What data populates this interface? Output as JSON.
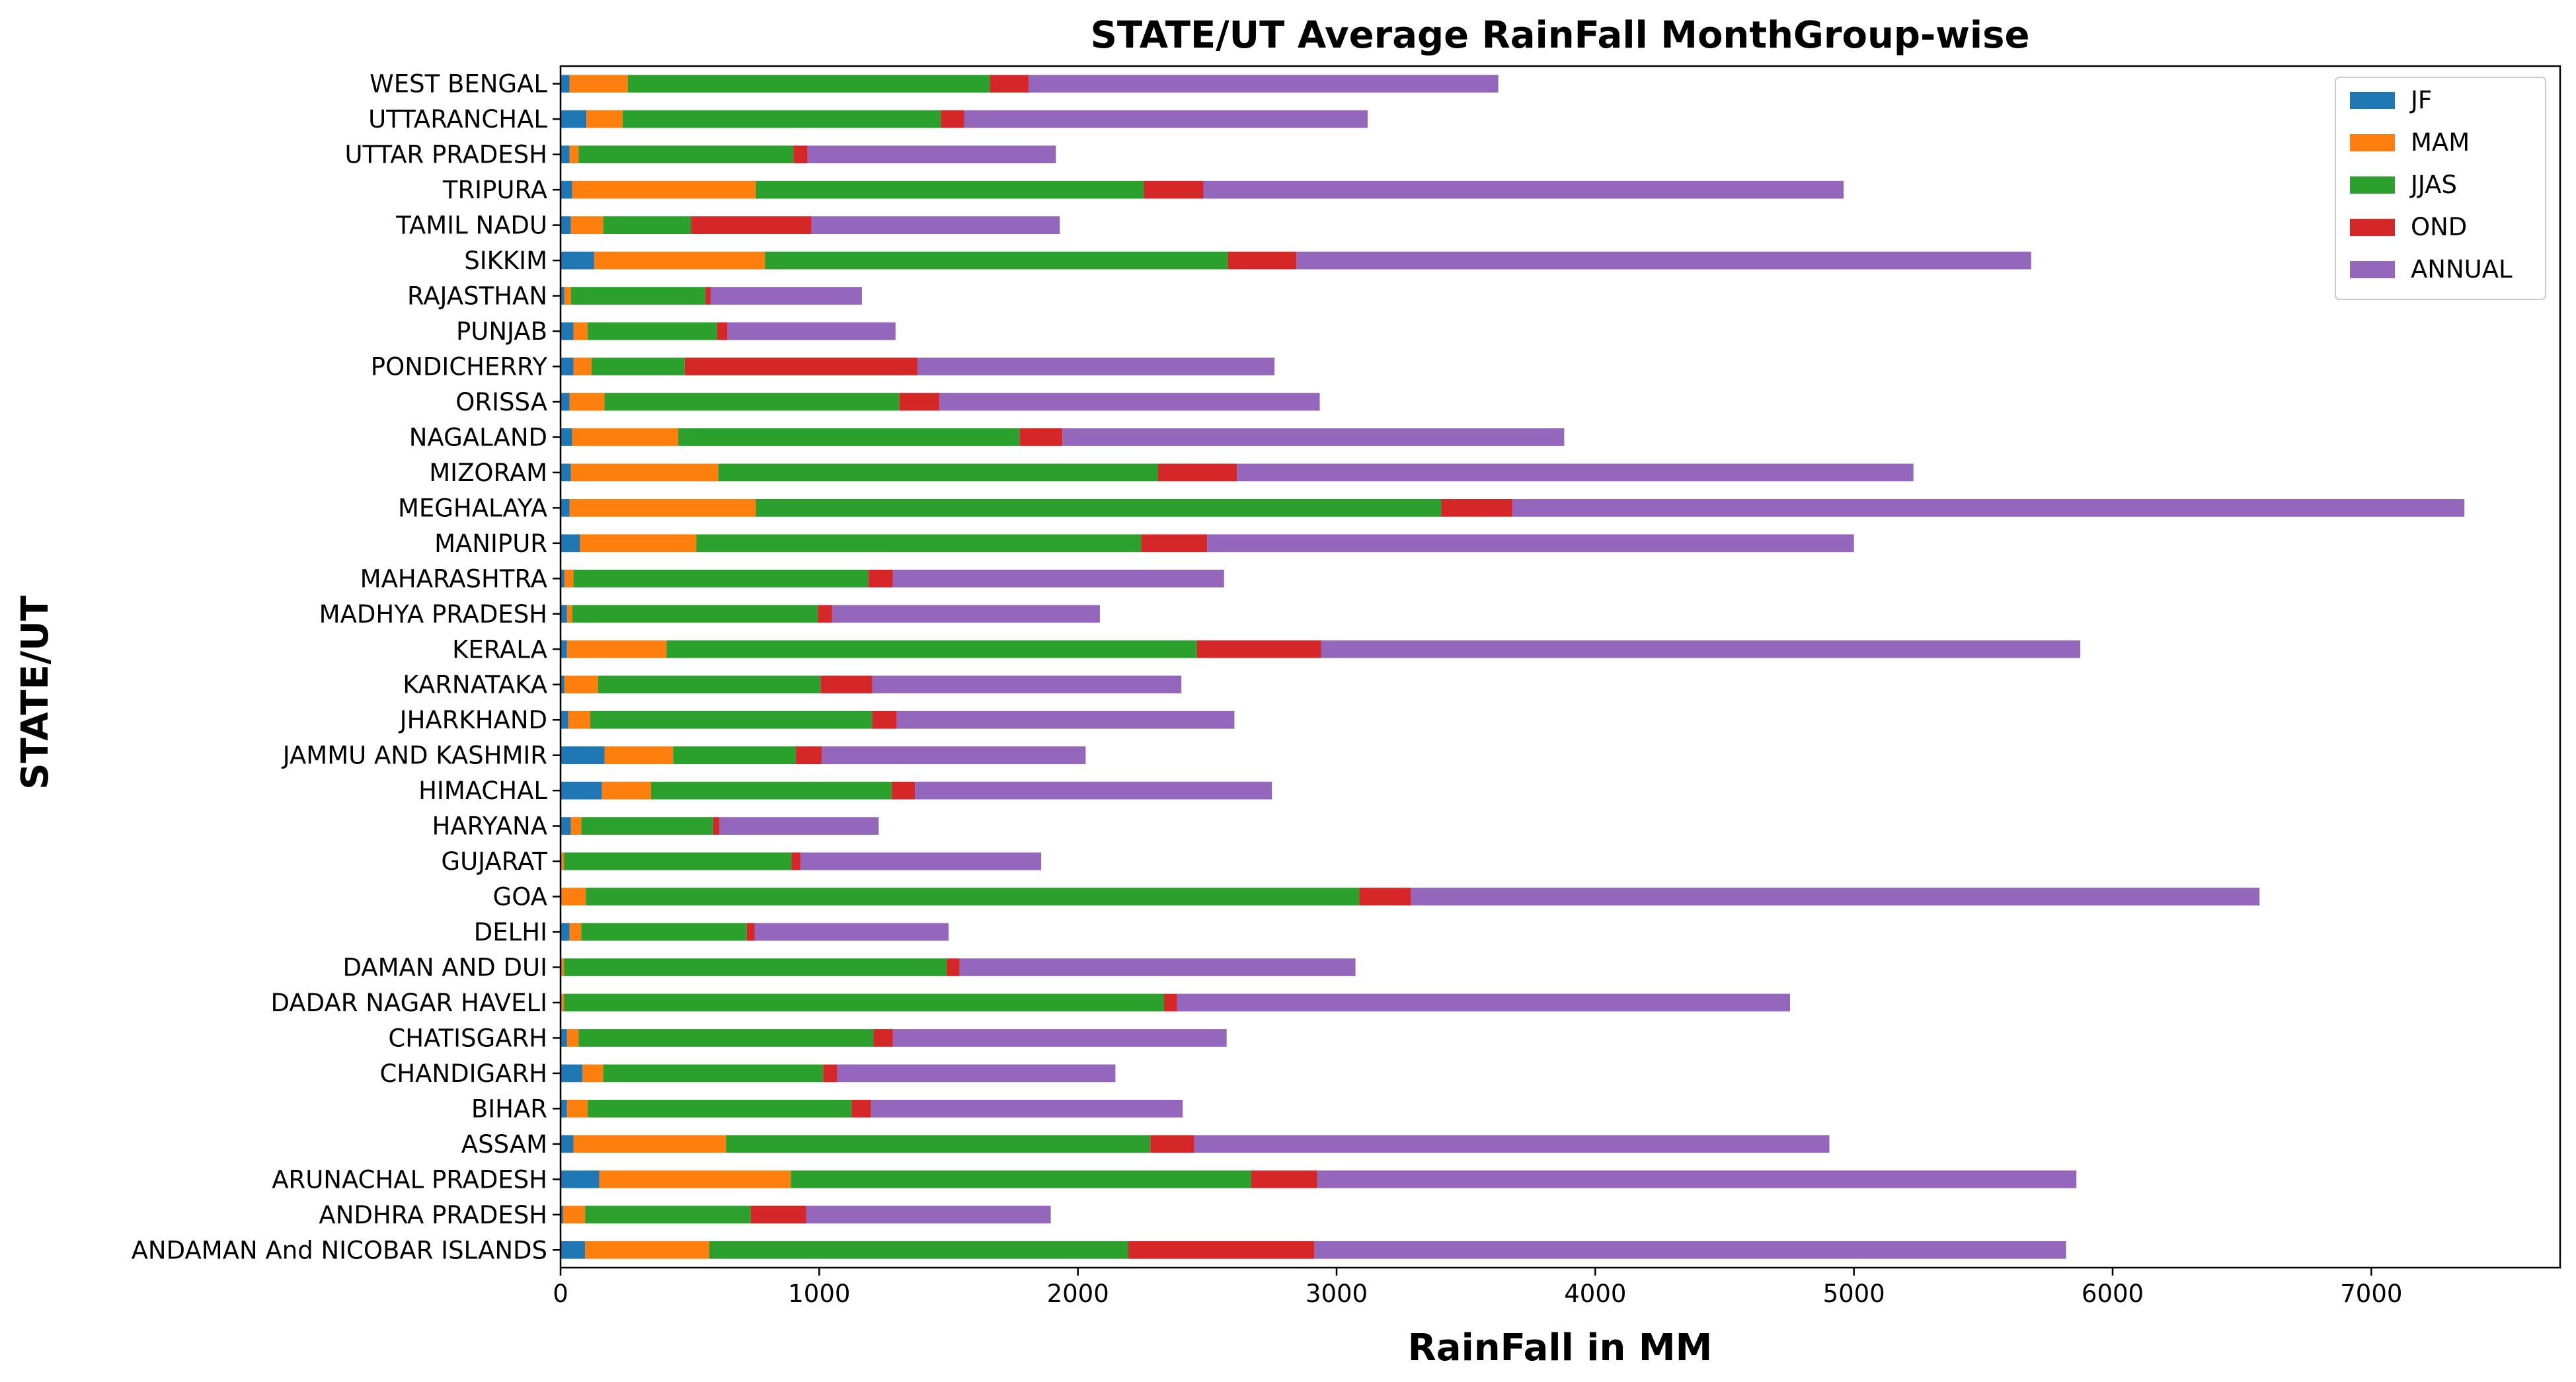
{
  "chart_data": {
    "type": "bar",
    "orientation": "horizontal",
    "stacked": true,
    "title": "STATE/UT Average RainFall MonthGroup-wise",
    "xlabel": "RainFall in MM",
    "ylabel": "STATE/UT",
    "xlim": [
      0,
      7730
    ],
    "xticks": [
      0,
      1000,
      2000,
      3000,
      4000,
      5000,
      6000,
      7000
    ],
    "grid": false,
    "legend_position": "top-right",
    "categories": [
      "ANDAMAN And NICOBAR ISLANDS",
      "ANDHRA PRADESH",
      "ARUNACHAL PRADESH",
      "ASSAM",
      "BIHAR",
      "CHANDIGARH",
      "CHATISGARH",
      "DADAR NAGAR HAVELI",
      "DAMAN AND DUI",
      "DELHI",
      "GOA",
      "GUJARAT",
      "HARYANA",
      "HIMACHAL",
      "JAMMU AND KASHMIR",
      "JHARKHAND",
      "KARNATAKA",
      "KERALA",
      "MADHYA PRADESH",
      "MAHARASHTRA",
      "MANIPUR",
      "MEGHALAYA",
      "MIZORAM",
      "NAGALAND",
      "ORISSA",
      "PONDICHERRY",
      "PUNJAB",
      "RAJASTHAN",
      "SIKKIM",
      "TAMIL NADU",
      "TRIPURA",
      "UTTAR PRADESH",
      "UTTARANCHAL",
      "WEST BENGAL"
    ],
    "series": [
      {
        "name": "JF",
        "color": "#1f77b4",
        "values": [
          95,
          10,
          150,
          50,
          25,
          85,
          25,
          3,
          3,
          35,
          3,
          3,
          40,
          160,
          170,
          30,
          15,
          25,
          25,
          15,
          75,
          35,
          40,
          45,
          35,
          50,
          50,
          15,
          130,
          40,
          45,
          35,
          100,
          35
        ]
      },
      {
        "name": "MAM",
        "color": "#ff7f0e",
        "values": [
          480,
          85,
          740,
          590,
          80,
          80,
          45,
          10,
          10,
          45,
          95,
          10,
          40,
          190,
          265,
          85,
          130,
          385,
          20,
          35,
          450,
          720,
          570,
          410,
          135,
          70,
          55,
          25,
          660,
          125,
          710,
          35,
          140,
          225
        ]
      },
      {
        "name": "JJAS",
        "color": "#2ca02c",
        "values": [
          1620,
          640,
          1780,
          1640,
          1020,
          850,
          1140,
          2320,
          1480,
          640,
          2990,
          880,
          510,
          930,
          475,
          1090,
          860,
          2050,
          950,
          1140,
          1720,
          2650,
          1700,
          1320,
          1140,
          360,
          500,
          520,
          1790,
          340,
          1500,
          830,
          1230,
          1400
        ]
      },
      {
        "name": "OND",
        "color": "#d62728",
        "values": [
          720,
          215,
          255,
          170,
          75,
          55,
          75,
          50,
          50,
          30,
          200,
          35,
          25,
          90,
          100,
          95,
          200,
          480,
          55,
          95,
          255,
          275,
          305,
          165,
          155,
          900,
          40,
          20,
          265,
          465,
          230,
          55,
          90,
          150
        ]
      },
      {
        "name": "ANNUAL",
        "color": "#9467bd",
        "values": [
          2905,
          945,
          2935,
          2455,
          1205,
          1075,
          1290,
          2370,
          1530,
          750,
          3280,
          930,
          615,
          1380,
          1020,
          1305,
          1195,
          2935,
          1035,
          1280,
          2500,
          3680,
          2615,
          1940,
          1470,
          1380,
          650,
          585,
          2840,
          960,
          2475,
          960,
          1560,
          1815
        ]
      }
    ]
  }
}
